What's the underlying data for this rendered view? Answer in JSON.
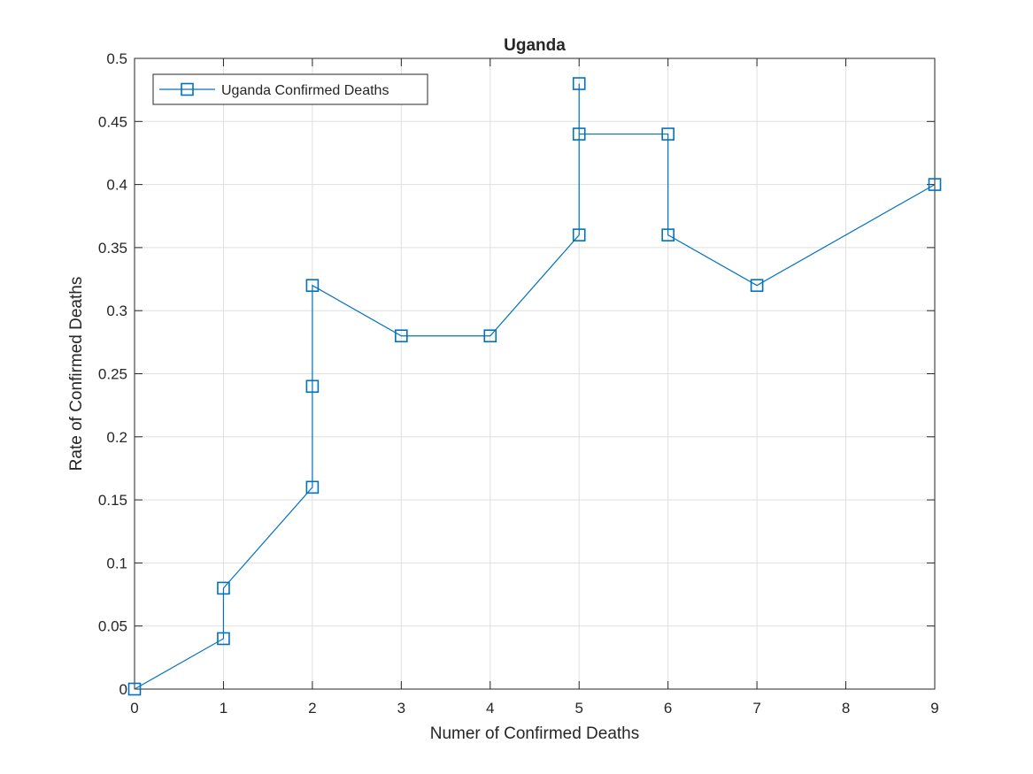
{
  "chart_data": {
    "type": "line",
    "title": "Uganda",
    "xlabel": "Numer of Confirmed Deaths",
    "ylabel": "Rate of Confirmed Deaths",
    "xlim": [
      0,
      9
    ],
    "ylim": [
      0,
      0.5
    ],
    "xticks": [
      0,
      1,
      2,
      3,
      4,
      5,
      6,
      7,
      8,
      9
    ],
    "xtick_labels": [
      "0",
      "1",
      "2",
      "3",
      "4",
      "5",
      "6",
      "7",
      "8",
      "9"
    ],
    "yticks": [
      0,
      0.05,
      0.1,
      0.15,
      0.2,
      0.25,
      0.3,
      0.35,
      0.4,
      0.45,
      0.5
    ],
    "ytick_labels": [
      "0",
      "0.05",
      "0.1",
      "0.15",
      "0.2",
      "0.25",
      "0.3",
      "0.35",
      "0.4",
      "0.45",
      "0.5"
    ],
    "grid": true,
    "legend": "top-left",
    "series": [
      {
        "name": "Uganda Confirmed Deaths",
        "color": "#0072BD",
        "marker": "square",
        "x": [
          0,
          1,
          1,
          2,
          2,
          2,
          3,
          4,
          5,
          5,
          5,
          6,
          6,
          7,
          9
        ],
        "y": [
          0,
          0.04,
          0.08,
          0.16,
          0.24,
          0.32,
          0.28,
          0.28,
          0.36,
          0.48,
          0.44,
          0.44,
          0.36,
          0.32,
          0.4
        ]
      }
    ]
  }
}
